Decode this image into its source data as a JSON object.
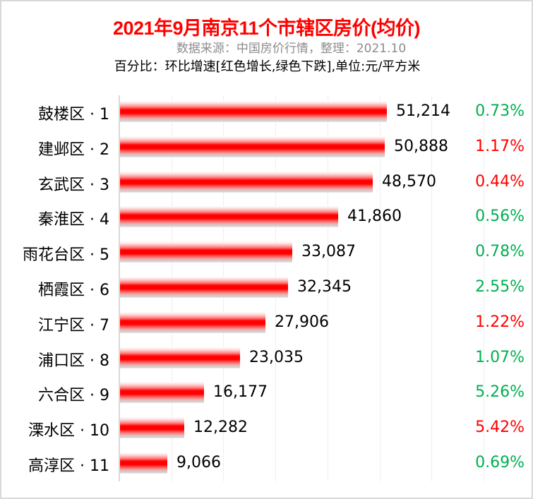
{
  "header": {
    "title": "2021年9月南京11个市辖区房价(均价)",
    "source": "数据来源：中国房价行情，整理：2021.10",
    "note": "百分比：环比增速[红色增长,绿色下跌],单位:元/平方米"
  },
  "colors": {
    "title": "#ff0000",
    "bar": "#ff0000",
    "increase": "#ff0000",
    "decrease": "#00b050",
    "source_text": "#8c8c8c",
    "gridline": "#eeeeee"
  },
  "rows": [
    {
      "label": "鼓楼区 · 1",
      "value": 51214,
      "value_text": "51,214",
      "pct": "0.73%",
      "trend": "decrease"
    },
    {
      "label": "建邺区 · 2",
      "value": 50888,
      "value_text": "50,888",
      "pct": "1.17%",
      "trend": "increase"
    },
    {
      "label": "玄武区 · 3",
      "value": 48570,
      "value_text": "48,570",
      "pct": "0.44%",
      "trend": "increase"
    },
    {
      "label": "秦淮区 · 4",
      "value": 41860,
      "value_text": "41,860",
      "pct": "0.56%",
      "trend": "decrease"
    },
    {
      "label": "雨花台区 · 5",
      "value": 33087,
      "value_text": "33,087",
      "pct": "0.78%",
      "trend": "decrease"
    },
    {
      "label": "栖霞区 · 6",
      "value": 32345,
      "value_text": "32,345",
      "pct": "2.55%",
      "trend": "decrease"
    },
    {
      "label": "江宁区 · 7",
      "value": 27906,
      "value_text": "27,906",
      "pct": "1.22%",
      "trend": "increase"
    },
    {
      "label": "浦口区 · 8",
      "value": 23035,
      "value_text": "23,035",
      "pct": "1.07%",
      "trend": "decrease"
    },
    {
      "label": "六合区 · 9",
      "value": 16177,
      "value_text": "16,177",
      "pct": "5.26%",
      "trend": "decrease"
    },
    {
      "label": "溧水区 · 10",
      "value": 12282,
      "value_text": "12,282",
      "pct": "5.42%",
      "trend": "increase"
    },
    {
      "label": "高淳区 · 11",
      "value": 9066,
      "value_text": "9,066",
      "pct": "0.69%",
      "trend": "decrease"
    }
  ],
  "chart_data": {
    "type": "bar",
    "orientation": "horizontal",
    "title": "2021年9月南京11个市辖区房价(均价)",
    "subtitle": "数据来源：中国房价行情，整理：2021.10",
    "annotation": "百分比：环比增速[红色增长,绿色下跌],单位:元/平方米",
    "categories": [
      "鼓楼区 · 1",
      "建邺区 · 2",
      "玄武区 · 3",
      "秦淮区 · 4",
      "雨花台区 · 5",
      "栖霞区 · 6",
      "江宁区 · 7",
      "浦口区 · 8",
      "六合区 · 9",
      "溧水区 · 10",
      "高淳区 · 11"
    ],
    "series": [
      {
        "name": "均价 (元/平方米)",
        "values": [
          51214,
          50888,
          48570,
          41860,
          33087,
          32345,
          27906,
          23035,
          16177,
          12282,
          9066
        ]
      },
      {
        "name": "环比增速 (%)",
        "values": [
          -0.73,
          1.17,
          0.44,
          -0.56,
          -0.78,
          -2.55,
          1.22,
          -1.07,
          -5.26,
          5.42,
          -0.69
        ]
      }
    ],
    "xlabel": "",
    "ylabel": "",
    "xlim": [
      0,
      70000
    ],
    "grid": true,
    "grid_step": 10000,
    "legend": "none"
  }
}
